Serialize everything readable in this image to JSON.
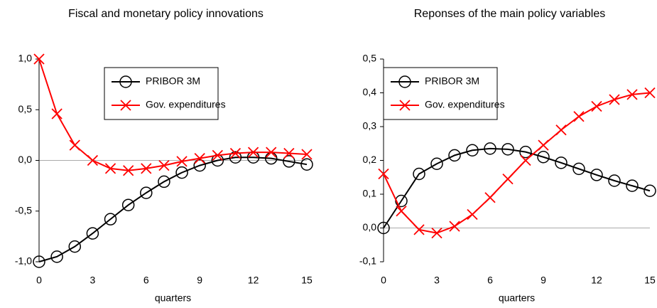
{
  "chart_data": [
    {
      "type": "line",
      "title": "Fiscal and monetary policy innovations",
      "xlabel": "quarters",
      "x": [
        0,
        1,
        2,
        3,
        4,
        5,
        6,
        7,
        8,
        9,
        10,
        11,
        12,
        13,
        14,
        15
      ],
      "xlim": [
        0,
        15
      ],
      "xticks": [
        0,
        3,
        6,
        9,
        12,
        15
      ],
      "ylim": [
        -1,
        1
      ],
      "yticks": [
        {
          "value": -1,
          "label": "-1,0"
        },
        {
          "value": -0.5,
          "label": "-0,5"
        },
        {
          "value": 0,
          "label": "0,0"
        },
        {
          "value": 0.5,
          "label": "0,5"
        },
        {
          "value": 1,
          "label": "1,0"
        }
      ],
      "legend": "upper right",
      "series": [
        {
          "name": "PRIBOR 3M",
          "color": "#000000",
          "marker": "circle",
          "values": [
            -1.0,
            -0.95,
            -0.85,
            -0.72,
            -0.58,
            -0.44,
            -0.32,
            -0.21,
            -0.12,
            -0.05,
            0.0,
            0.03,
            0.03,
            0.02,
            -0.01,
            -0.04
          ]
        },
        {
          "name": "Gov. expenditures",
          "color": "#ff0000",
          "marker": "x",
          "values": [
            1.0,
            0.46,
            0.15,
            0.0,
            -0.08,
            -0.1,
            -0.08,
            -0.05,
            -0.01,
            0.02,
            0.05,
            0.07,
            0.08,
            0.08,
            0.07,
            0.06
          ]
        }
      ]
    },
    {
      "type": "line",
      "title": "Reponses of the main policy variables",
      "xlabel": "quarters",
      "x": [
        0,
        1,
        2,
        3,
        4,
        5,
        6,
        7,
        8,
        9,
        10,
        11,
        12,
        13,
        14,
        15
      ],
      "xlim": [
        0,
        15
      ],
      "xticks": [
        0,
        3,
        6,
        9,
        12,
        15
      ],
      "ylim": [
        -0.1,
        0.5
      ],
      "yticks": [
        {
          "value": -0.1,
          "label": "-0,1"
        },
        {
          "value": 0,
          "label": "0,0"
        },
        {
          "value": 0.1,
          "label": "0,1"
        },
        {
          "value": 0.2,
          "label": "0,2"
        },
        {
          "value": 0.3,
          "label": "0,3"
        },
        {
          "value": 0.4,
          "label": "0,4"
        },
        {
          "value": 0.5,
          "label": "0,5"
        }
      ],
      "legend": "upper left",
      "series": [
        {
          "name": "PRIBOR 3M",
          "color": "#000000",
          "marker": "circle",
          "values": [
            0.0,
            0.08,
            0.16,
            0.19,
            0.215,
            0.23,
            0.235,
            0.233,
            0.225,
            0.21,
            0.193,
            0.175,
            0.157,
            0.14,
            0.125,
            0.11
          ]
        },
        {
          "name": "Gov. expenditures",
          "color": "#ff0000",
          "marker": "x",
          "values": [
            0.16,
            0.05,
            -0.005,
            -0.015,
            0.005,
            0.04,
            0.09,
            0.145,
            0.2,
            0.245,
            0.29,
            0.33,
            0.36,
            0.38,
            0.395,
            0.4
          ]
        }
      ]
    }
  ]
}
